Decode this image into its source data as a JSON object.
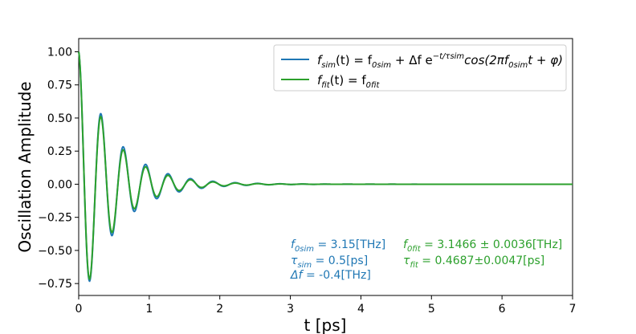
{
  "chart_data": {
    "type": "line",
    "xlabel": "t [ps]",
    "ylabel": "Oscillation Amplitude",
    "xlim": [
      0,
      7
    ],
    "ylim": [
      -0.84,
      1.1
    ],
    "xticks": [
      0,
      1,
      2,
      3,
      4,
      5,
      6,
      7
    ],
    "yticks": [
      -0.75,
      -0.5,
      -0.25,
      0.0,
      0.25,
      0.5,
      0.75,
      1.0
    ],
    "xtick_labels": [
      "0",
      "1",
      "2",
      "3",
      "4",
      "5",
      "6",
      "7"
    ],
    "ytick_labels": [
      "−0.75",
      "−0.50",
      "−0.25",
      "0.00",
      "0.25",
      "0.50",
      "0.75",
      "1.00"
    ],
    "grid": false,
    "legend_position": "top-right",
    "series": [
      {
        "name": "f_sim(t) = f_0sim + Δf e^(−t/τ_sim) cos(2πf_0sim t + φ)",
        "color": "#1f77b4",
        "model": {
          "amplitude": 1.0,
          "frequency_THz": 3.15,
          "tau_ps": 0.5
        }
      },
      {
        "name": "f_fit(t) = f_0fit",
        "color": "#2ca02c",
        "model": {
          "amplitude": 1.0,
          "frequency_THz": 3.1466,
          "tau_ps": 0.4687
        }
      }
    ],
    "legend": [
      {
        "main": "f",
        "sub": "sim",
        "rest": "(t) = f",
        "sub2": "0sim",
        "tail": " + Δf e",
        "sup": "−t/τsim",
        "end": "cos(2πf",
        "sub3": "0sim",
        "final": "t + φ)"
      },
      {
        "main": "f",
        "sub": "fit",
        "rest": "(t) = f",
        "sub2": "0fit"
      }
    ],
    "annotations": {
      "sim": {
        "color": "#1f77b4",
        "line1": {
          "sym": "f",
          "sub": "0sim",
          "text": " = 3.15[THz]"
        },
        "line2": {
          "sym": "τ",
          "sub": "sim",
          "text": " = 0.5[ps]"
        },
        "line3": {
          "sym": "Δf",
          "text": " = -0.4[THz]"
        }
      },
      "fit": {
        "color": "#2ca02c",
        "line1": {
          "sym": "f",
          "sub": "0fit",
          "text": " = 3.1466 ± 0.0036[THz]"
        },
        "line2": {
          "sym": "τ",
          "sub": "fit",
          "text": " = 0.4687±0.0047[ps]"
        }
      }
    }
  }
}
